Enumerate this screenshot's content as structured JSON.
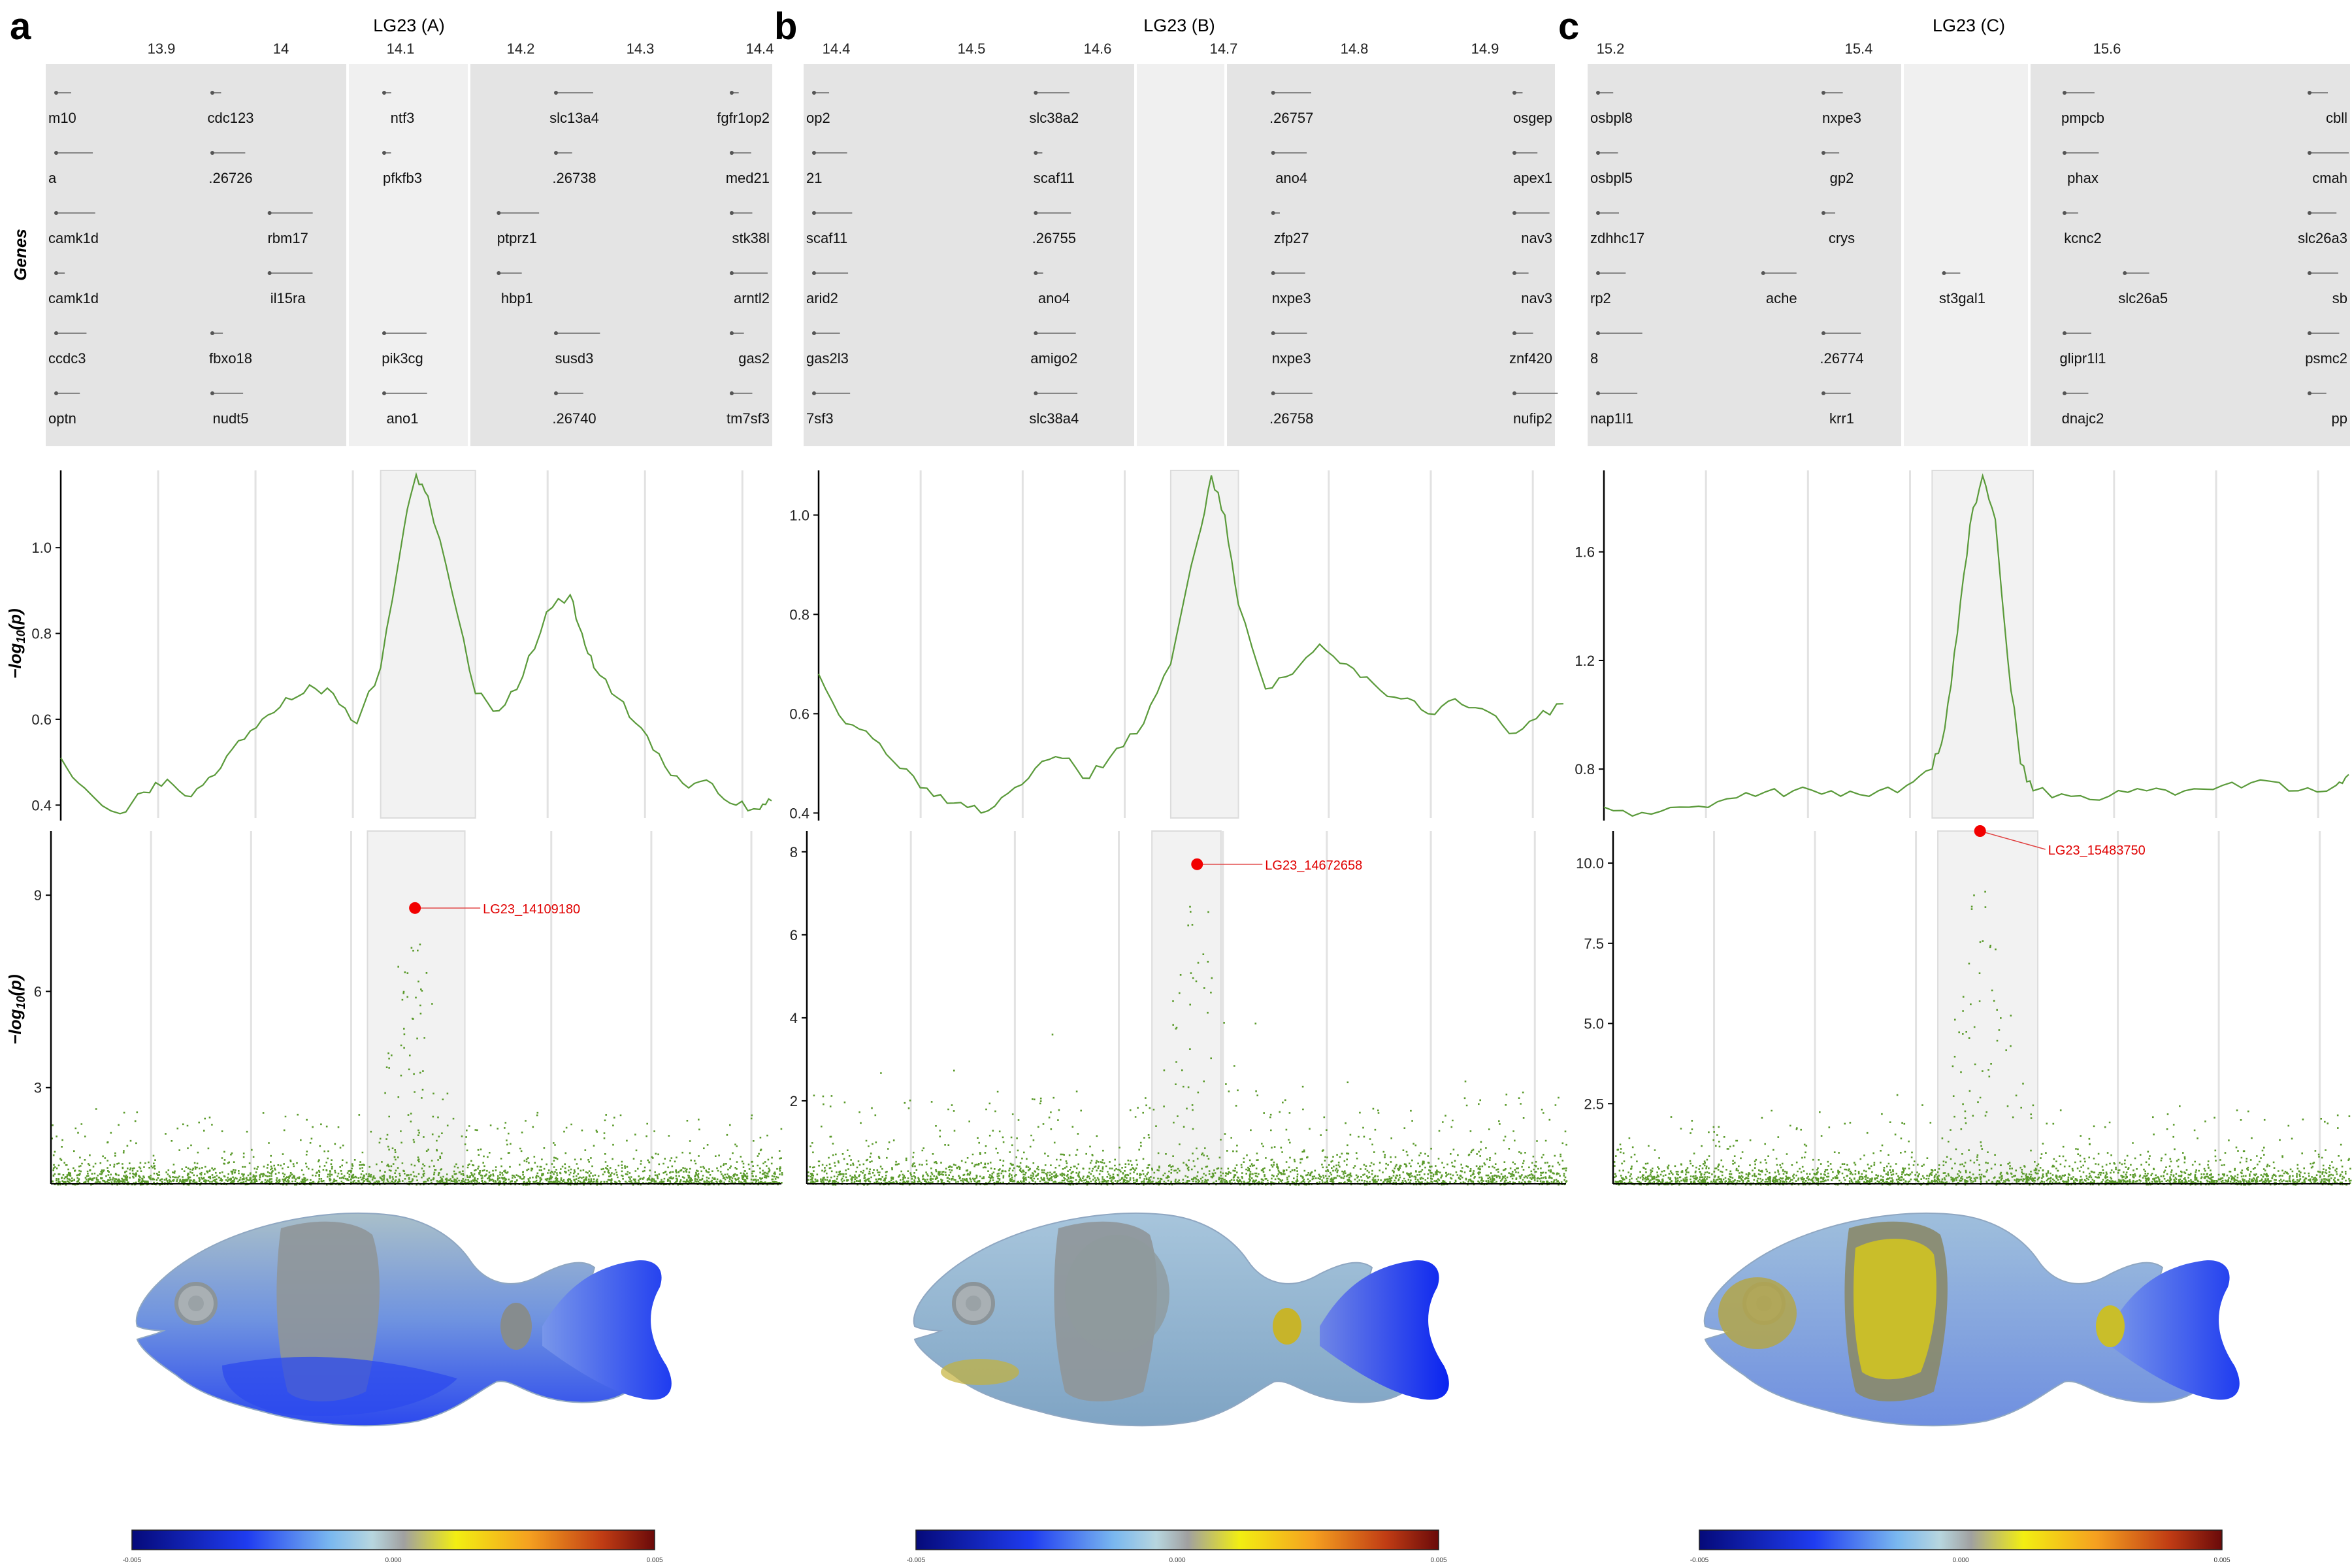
{
  "figure": {
    "panels": [
      {
        "letter": "a",
        "title": "LG23 (A)",
        "x_ticks": [
          "13.9",
          "14",
          "14.1",
          "14.2",
          "14.3",
          "14.4"
        ],
        "genes": [
          [
            "m10",
            "cdc123",
            "ntf3",
            "slc13a4",
            "fgfr1op2"
          ],
          [
            "a",
            ".26726",
            "pfkfb3",
            ".26738",
            "med21"
          ],
          [
            "camk1d",
            "rbm17",
            "ptprz1",
            "stk38l"
          ],
          [
            "camk1d",
            "il15ra",
            "hbp1",
            "arntl2"
          ],
          [
            "ccdc3",
            "fbxo18",
            "pik3cg",
            "susd3",
            "gas2"
          ],
          [
            "optn",
            "nudt5",
            "ano1",
            ".26740",
            "tm7sf3"
          ]
        ],
        "mid_yticks": [
          "1.0",
          "0.8",
          "0.6",
          "0.4"
        ],
        "bot_yticks": [
          "9",
          "6",
          "3"
        ],
        "top_snp": "LG23_14109180",
        "colorbar_labels": [
          "-0.005",
          "0.000",
          "0.005"
        ]
      },
      {
        "letter": "b",
        "title": "LG23 (B)",
        "x_ticks": [
          "14.4",
          "14.5",
          "14.6",
          "14.7",
          "14.8",
          "14.9"
        ],
        "genes": [
          [
            "op2",
            "slc38a2",
            ".26757",
            "osgep"
          ],
          [
            "21",
            "scaf11",
            "ano4",
            "apex1"
          ],
          [
            "scaf11",
            ".26755",
            "zfp27",
            "nav3"
          ],
          [
            "arid2",
            "ano4",
            "nxpe3",
            "nav3"
          ],
          [
            "gas2l3",
            "amigo2",
            "nxpe3",
            "znf420"
          ],
          [
            "7sf3",
            "slc38a4",
            ".26758",
            "nufip2"
          ]
        ],
        "mid_yticks": [
          "1.0",
          "0.8",
          "0.6",
          "0.4"
        ],
        "bot_yticks": [
          "8",
          "6",
          "4",
          "2"
        ],
        "top_snp": "LG23_14672658",
        "colorbar_labels": [
          "-0.005",
          "0.000",
          "0.005"
        ]
      },
      {
        "letter": "c",
        "title": "LG23 (C)",
        "x_ticks": [
          "15.2",
          "15.4",
          "15.6"
        ],
        "genes": [
          [
            "osbpl8",
            "nxpe3",
            "pmpcb",
            "cbll"
          ],
          [
            "osbpl5",
            "gp2",
            "phax",
            "cmah"
          ],
          [
            "zdhhc17",
            "crys",
            "kcnc2",
            "slc26a3"
          ],
          [
            "rp2",
            "ache",
            "st3gal1",
            "slc26a5",
            "sb"
          ],
          [
            "8",
            ".26774",
            "glipr1l1",
            "psmc2"
          ],
          [
            "nap1l1",
            "krr1",
            "dnajc2",
            "pp"
          ]
        ],
        "mid_yticks": [
          "1.6",
          "1.2",
          "0.8"
        ],
        "bot_yticks": [
          "10.0",
          "7.5",
          "5.0",
          "2.5"
        ],
        "top_snp": "LG23_15483750",
        "colorbar_labels": [
          "-0.005",
          "0.000",
          "0.005"
        ]
      }
    ],
    "y_labels": {
      "genes": "Genes",
      "p_prefix": "−log",
      "p_sub": "10",
      "p_suffix": "(p)"
    }
  },
  "chart_data": [
    {
      "panel": "a",
      "type": "line",
      "title": "LG23 (A)",
      "xlabel": "",
      "ylabel": "−log10(p)",
      "xlim": [
        13.81,
        14.41
      ],
      "ylim": [
        0.37,
        1.18
      ],
      "x": [
        13.81,
        13.83,
        13.86,
        13.88,
        13.9,
        13.92,
        13.94,
        13.96,
        13.98,
        14.0,
        14.02,
        14.04,
        14.06,
        14.08,
        14.1,
        14.11,
        14.12,
        14.14,
        14.16,
        14.18,
        14.2,
        14.22,
        14.24,
        14.25,
        14.26,
        14.28,
        14.3,
        14.32,
        14.34,
        14.36,
        14.38,
        14.4,
        14.41
      ],
      "values": [
        0.51,
        0.44,
        0.38,
        0.43,
        0.46,
        0.42,
        0.47,
        0.55,
        0.6,
        0.65,
        0.68,
        0.66,
        0.59,
        0.72,
        1.05,
        1.17,
        1.12,
        0.9,
        0.66,
        0.62,
        0.7,
        0.85,
        0.89,
        0.8,
        0.72,
        0.65,
        0.58,
        0.49,
        0.44,
        0.45,
        0.4,
        0.39,
        0.41
      ],
      "highlight": [
        14.08,
        14.16
      ]
    },
    {
      "panel": "a",
      "type": "scatter",
      "ylabel": "−log10(p)",
      "xlim": [
        13.81,
        14.41
      ],
      "ylim": [
        0,
        11
      ],
      "top_snp": {
        "label": "LG23_14109180",
        "x": 14.109,
        "y": 8.6
      },
      "highlight": [
        14.07,
        14.15
      ]
    },
    {
      "panel": "b",
      "type": "line",
      "title": "LG23 (B)",
      "xlabel": "",
      "ylabel": "−log10(p)",
      "xlim": [
        14.39,
        14.94
      ],
      "ylim": [
        0.39,
        1.09
      ],
      "x": [
        14.39,
        14.41,
        14.43,
        14.45,
        14.47,
        14.49,
        14.51,
        14.53,
        14.55,
        14.57,
        14.59,
        14.61,
        14.63,
        14.65,
        14.67,
        14.68,
        14.69,
        14.7,
        14.72,
        14.74,
        14.76,
        14.78,
        14.8,
        14.82,
        14.84,
        14.86,
        14.88,
        14.9,
        14.92,
        14.94
      ],
      "values": [
        0.68,
        0.58,
        0.55,
        0.49,
        0.45,
        0.42,
        0.4,
        0.44,
        0.49,
        0.51,
        0.47,
        0.53,
        0.58,
        0.7,
        0.95,
        1.08,
        1.0,
        0.82,
        0.65,
        0.68,
        0.74,
        0.7,
        0.66,
        0.63,
        0.6,
        0.63,
        0.61,
        0.56,
        0.59,
        0.62
      ],
      "highlight": [
        14.65,
        14.7
      ]
    },
    {
      "panel": "b",
      "type": "scatter",
      "ylabel": "−log10(p)",
      "xlim": [
        14.39,
        14.94
      ],
      "ylim": [
        0,
        8.5
      ],
      "top_snp": {
        "label": "LG23_14672658",
        "x": 14.6727,
        "y": 7.7
      },
      "highlight": [
        14.64,
        14.69
      ]
    },
    {
      "panel": "c",
      "type": "line",
      "title": "LG23 (C)",
      "xlabel": "",
      "ylabel": "−log10(p)",
      "xlim": [
        15.19,
        15.78
      ],
      "ylim": [
        0.62,
        1.9
      ],
      "x": [
        15.19,
        15.22,
        15.25,
        15.28,
        15.31,
        15.34,
        15.37,
        15.4,
        15.43,
        15.45,
        15.46,
        15.47,
        15.48,
        15.49,
        15.5,
        15.51,
        15.52,
        15.53,
        15.56,
        15.59,
        15.62,
        15.65,
        15.68,
        15.71,
        15.74,
        15.77,
        15.78
      ],
      "values": [
        0.66,
        0.64,
        0.66,
        0.68,
        0.7,
        0.72,
        0.72,
        0.7,
        0.74,
        0.8,
        0.95,
        1.3,
        1.7,
        1.88,
        1.72,
        1.2,
        0.82,
        0.72,
        0.7,
        0.7,
        0.72,
        0.72,
        0.74,
        0.76,
        0.72,
        0.74,
        0.78
      ],
      "highlight": [
        15.45,
        15.53
      ]
    },
    {
      "panel": "c",
      "type": "scatter",
      "ylabel": "−log10(p)",
      "xlim": [
        15.19,
        15.78
      ],
      "ylim": [
        0,
        11
      ],
      "top_snp": {
        "label": "LG23_15483750",
        "x": 15.4838,
        "y": 11.0
      },
      "highlight": [
        15.45,
        15.53
      ]
    }
  ]
}
